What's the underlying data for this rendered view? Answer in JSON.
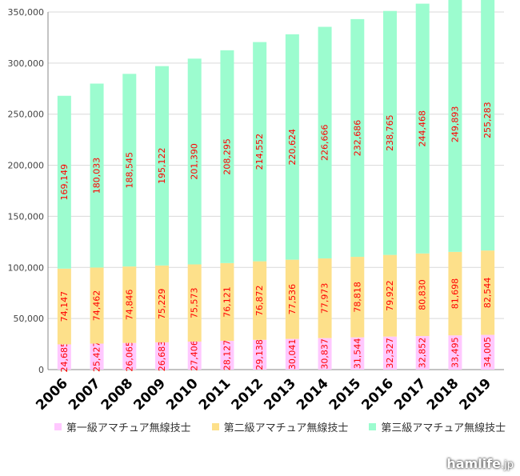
{
  "chart_data": {
    "type": "bar",
    "stacked": true,
    "categories": [
      "2006",
      "2007",
      "2008",
      "2009",
      "2010",
      "2011",
      "2012",
      "2013",
      "2014",
      "2015",
      "2016",
      "2017",
      "2018",
      "2019"
    ],
    "ylim": [
      0,
      350000
    ],
    "yticks": [
      "0",
      "50,000",
      "100,000",
      "150,000",
      "200,000",
      "250,000",
      "300,000",
      "350,000"
    ],
    "grid": true,
    "legend_position": "bottom",
    "series": [
      {
        "name": "第一級アマチュア無線技士",
        "color": "#ffc8ff",
        "values": [
          24685,
          25427,
          26065,
          26683,
          27406,
          28127,
          29138,
          30041,
          30837,
          31544,
          32327,
          32852,
          33495,
          34005
        ],
        "labels": [
          "24,685",
          "25,427",
          "26,065",
          "26,683",
          "27,406",
          "28,127",
          "29,138",
          "30,041",
          "30,837",
          "31,544",
          "32,327",
          "32,852",
          "33,495",
          "34,005"
        ]
      },
      {
        "name": "第二級アマチュア無線技士",
        "color": "#fde08a",
        "values": [
          74147,
          74462,
          74846,
          75229,
          75573,
          76121,
          76872,
          77536,
          77973,
          78818,
          79922,
          80830,
          81698,
          82544
        ],
        "labels": [
          "74,147",
          "74,462",
          "74,846",
          "75,229",
          "75,573",
          "76,121",
          "76,872",
          "77,536",
          "77,973",
          "78,818",
          "79,922",
          "80,830",
          "81,698",
          "82,544"
        ]
      },
      {
        "name": "第三級アマチュア無線技士",
        "color": "#9cfccf",
        "values": [
          169149,
          180033,
          188545,
          195122,
          201390,
          208295,
          214552,
          220624,
          226666,
          232686,
          238765,
          244468,
          249893,
          255283
        ],
        "labels": [
          "169,149",
          "180,033",
          "188,545",
          "195,122",
          "201,390",
          "208,295",
          "214,552",
          "220,624",
          "226,666",
          "232,686",
          "238,765",
          "244,468",
          "249,893",
          "255,283"
        ]
      }
    ],
    "label_color": "#ff0000"
  },
  "watermark": {
    "name": "hamlife",
    "tld": ".jp"
  }
}
